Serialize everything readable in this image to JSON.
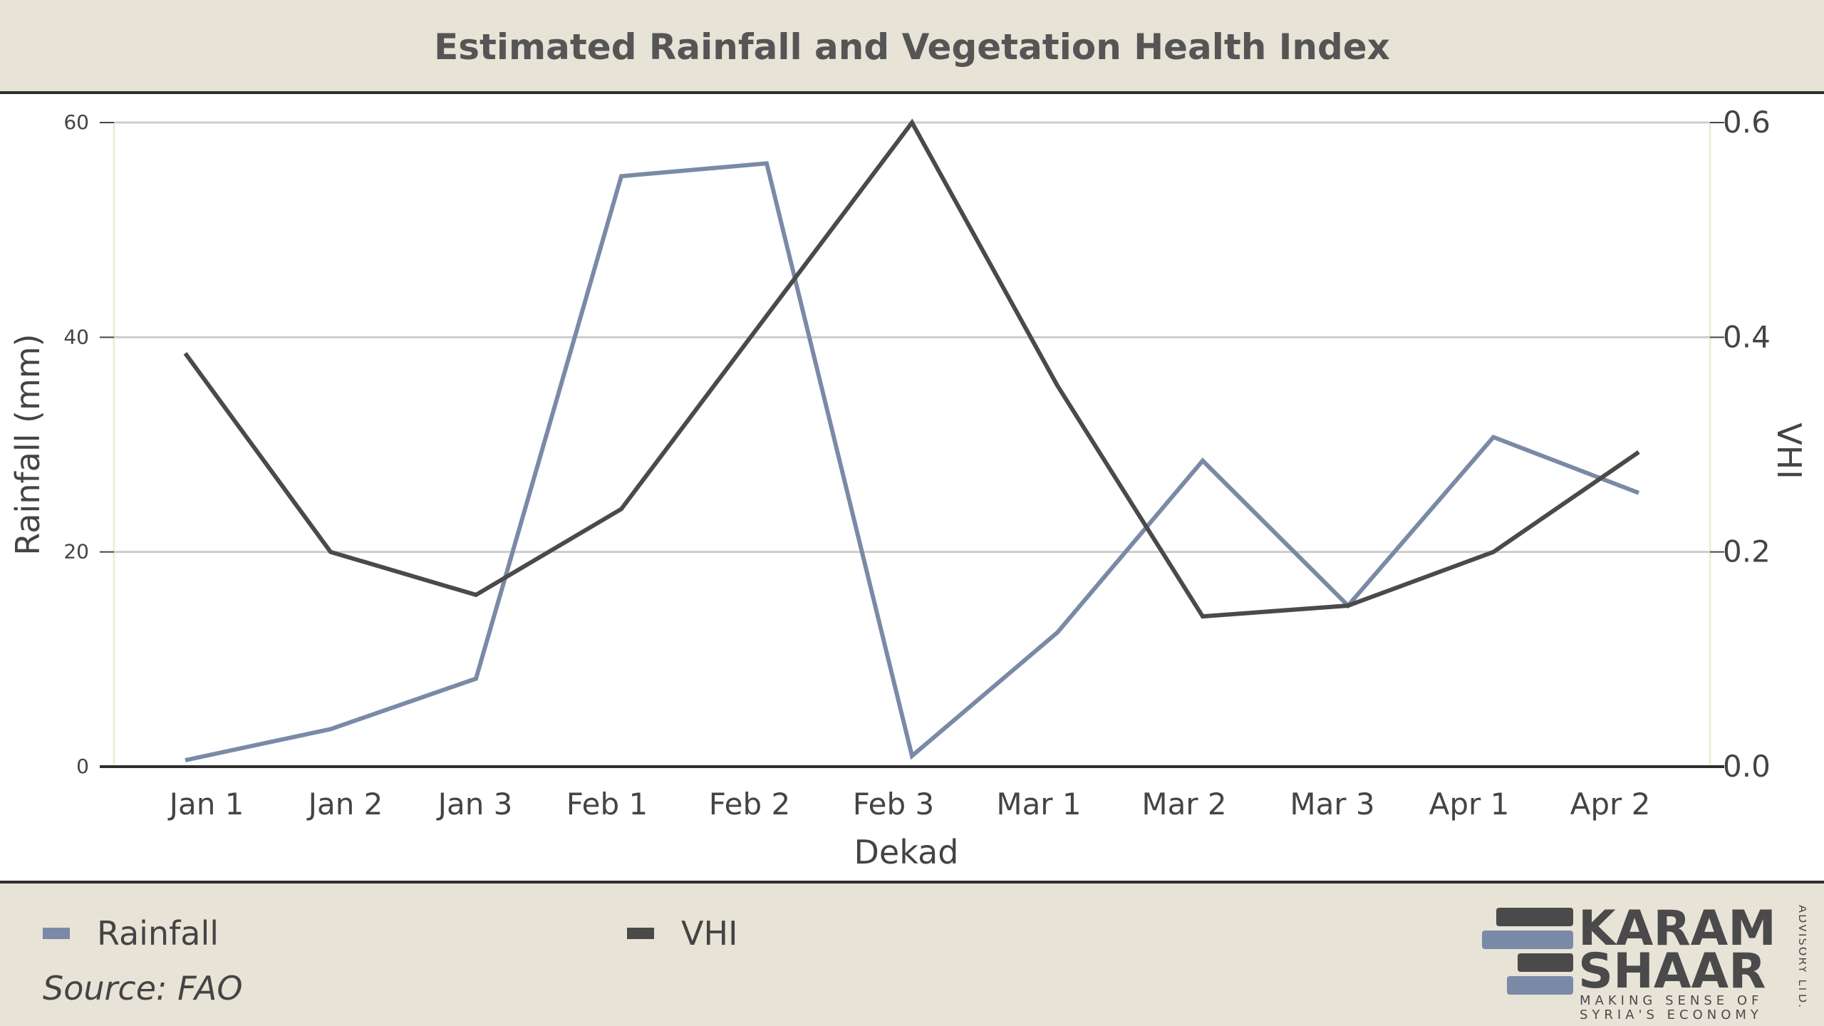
{
  "header": {
    "title": "Estimated Rainfall and Vegetation Health Index"
  },
  "legend": [
    {
      "label": "Rainfall",
      "color": "#7a8aa6"
    },
    {
      "label": "VHI",
      "color": "#4a4a4a"
    }
  ],
  "footer": {
    "source": "Source: FAO"
  },
  "logo": {
    "line1": "KARAM",
    "line2": "SHAAR",
    "tagline1": "MAKING SENSE OF",
    "tagline2": "SYRIA'S ECONOMY",
    "side": "ADVISORY LTD.",
    "icon": "stacked-bars-logo-icon"
  },
  "chart_data": {
    "type": "line",
    "title": "Estimated Rainfall and Vegetation Health Index",
    "xlabel": "Dekad",
    "ylabel": "Rainfall (mm)",
    "y2label": "VHI",
    "categories": [
      "Jan 1",
      "Jan 2",
      "Jan 3",
      "Feb 1",
      "Feb 2",
      "Feb 3",
      "Mar 1",
      "Mar 2",
      "Mar 3",
      "Apr 1",
      "Apr 2"
    ],
    "ylim": [
      0,
      60
    ],
    "y2lim": [
      0,
      0.6
    ],
    "yticks": [
      "0",
      "20",
      "40",
      "60"
    ],
    "y2ticks": [
      "0.0",
      "0.2",
      "0.4",
      "0.6"
    ],
    "grid": true,
    "legend_position": "bottom",
    "series": [
      {
        "name": "Rainfall",
        "axis": "left",
        "color": "#7a8aa6",
        "values": [
          0.6,
          3.5,
          8.2,
          55.0,
          56.2,
          1.0,
          12.5,
          28.5,
          15.0,
          30.7,
          25.5
        ]
      },
      {
        "name": "VHI",
        "axis": "right",
        "color": "#4a4a4a",
        "values": [
          0.385,
          0.2,
          0.16,
          0.24,
          0.42,
          0.6,
          0.355,
          0.14,
          0.15,
          0.2,
          0.293
        ]
      }
    ]
  }
}
